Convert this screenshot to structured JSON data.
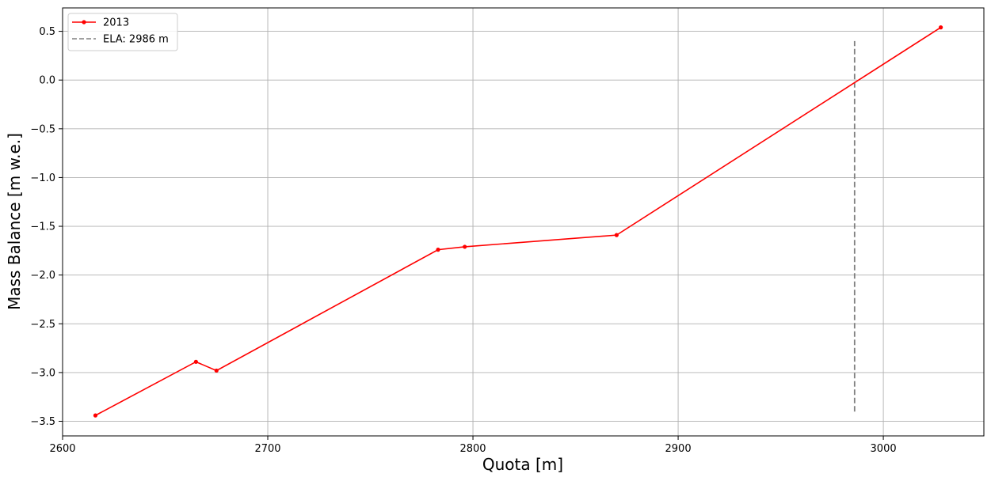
{
  "chart_data": {
    "type": "line",
    "title": "",
    "xlabel": "Quota [m]",
    "ylabel": "Mass Balance [m w.e.]",
    "xlim": [
      2600,
      3049
    ],
    "ylim": [
      -3.65,
      0.74
    ],
    "xticks": [
      2600,
      2700,
      2800,
      2900,
      3000
    ],
    "yticks": [
      0.5,
      0.0,
      -0.5,
      -1.0,
      -1.5,
      -2.0,
      -2.5,
      -3.0,
      -3.5
    ],
    "xtick_labels": [
      "2600",
      "2700",
      "2800",
      "2900",
      "3000"
    ],
    "ytick_labels": [
      "0.5",
      "0.0",
      "−0.5",
      "−1.0",
      "−1.5",
      "−2.0",
      "−2.5",
      "−3.0",
      "−3.5"
    ],
    "grid": true,
    "legend_position": "top-left",
    "series": [
      {
        "name": "2013",
        "color": "#ff0000",
        "marker": "circle",
        "x": [
          2616,
          2665,
          2675,
          2783,
          2796,
          2870,
          3028
        ],
        "y": [
          -3.44,
          -2.89,
          -2.98,
          -1.74,
          -1.71,
          -1.59,
          0.54
        ]
      }
    ],
    "reference_lines": [
      {
        "name": "ELA: 2986 m",
        "color": "#808080",
        "style": "dashed",
        "x": 2986,
        "y_range": [
          -3.4,
          0.4
        ]
      }
    ]
  }
}
